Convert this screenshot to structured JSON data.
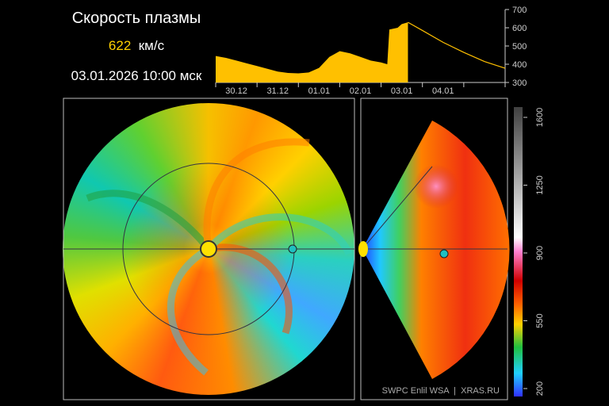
{
  "header": {
    "title": "Скорость плазмы",
    "value": "622",
    "unit": "км/с",
    "datetime": "03.01.2026 10:00 мск"
  },
  "chart_data": {
    "type": "area",
    "x": [
      0,
      0.25,
      0.5,
      0.75,
      1,
      1.25,
      1.5,
      1.75,
      2,
      2.25,
      2.5,
      2.75,
      3,
      3.25,
      3.5,
      3.75,
      4,
      4.15,
      4.2,
      4.4,
      4.5,
      4.65,
      5,
      5.5,
      6,
      6.5,
      7
    ],
    "series": [
      {
        "color": "#ffc000",
        "fill": true,
        "values": [
          445,
          435,
          420,
          405,
          390,
          375,
          360,
          352,
          350,
          355,
          380,
          440,
          472,
          460,
          440,
          420,
          410,
          400,
          590,
          600,
          620,
          630,
          null,
          null,
          null,
          null,
          null
        ]
      },
      {
        "color": "#ffc000",
        "fill": false,
        "values": [
          null,
          null,
          null,
          null,
          null,
          null,
          null,
          null,
          null,
          null,
          null,
          null,
          null,
          null,
          null,
          null,
          null,
          null,
          null,
          null,
          null,
          630,
          585,
          520,
          465,
          415,
          378
        ]
      }
    ],
    "xlim": [
      0,
      7
    ],
    "xticks": [
      0,
      1,
      2,
      3,
      4,
      5,
      6,
      7
    ],
    "xtick_labels": [
      {
        "value": 0.5,
        "label": "30.12"
      },
      {
        "value": 1.5,
        "label": "31.12"
      },
      {
        "value": 2.5,
        "label": "01.01"
      },
      {
        "value": 3.5,
        "label": "02.01"
      },
      {
        "value": 4.5,
        "label": "03.01"
      },
      {
        "value": 5.5,
        "label": "04.01"
      }
    ],
    "ylim": [
      300,
      700
    ],
    "yticks": [
      300,
      400,
      500,
      600,
      700
    ]
  },
  "colorbar": {
    "lim": [
      200,
      1600
    ],
    "ticks": [
      200,
      550,
      900,
      1250,
      1600
    ]
  },
  "credit": "SWPC Enlil WSA  |  XRAS.RU"
}
